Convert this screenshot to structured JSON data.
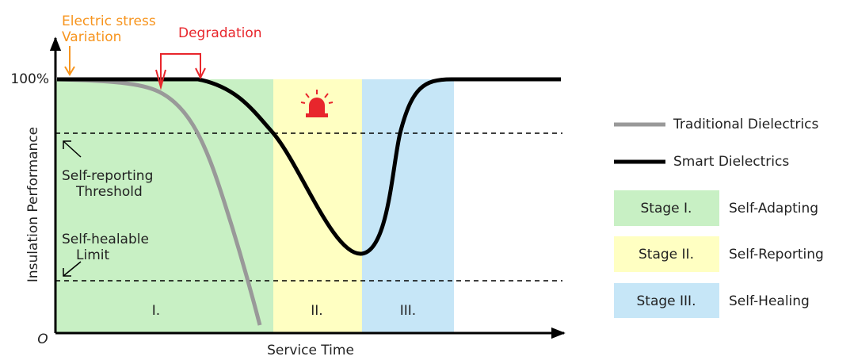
{
  "annotations": {
    "electric_stress": [
      "Electric stress",
      "Variation"
    ],
    "degradation": "Degradation",
    "threshold": [
      "Self-reporting",
      "Threshold"
    ],
    "limit": [
      "Self-healable",
      "Limit"
    ]
  },
  "axes": {
    "y_top": "100%",
    "y_label": "Insulation Performance",
    "origin": "O",
    "x_label": "Service Time"
  },
  "regions": [
    "I.",
    "II.",
    "III."
  ],
  "legend": {
    "lines": [
      "Traditional Dielectrics",
      "Smart Dielectrics"
    ],
    "stages": [
      {
        "label": "Stage I.",
        "name": "Self-Adapting"
      },
      {
        "label": "Stage II.",
        "name": "Self-Reporting"
      },
      {
        "label": "Stage III.",
        "name": "Self-Healing"
      }
    ]
  }
}
